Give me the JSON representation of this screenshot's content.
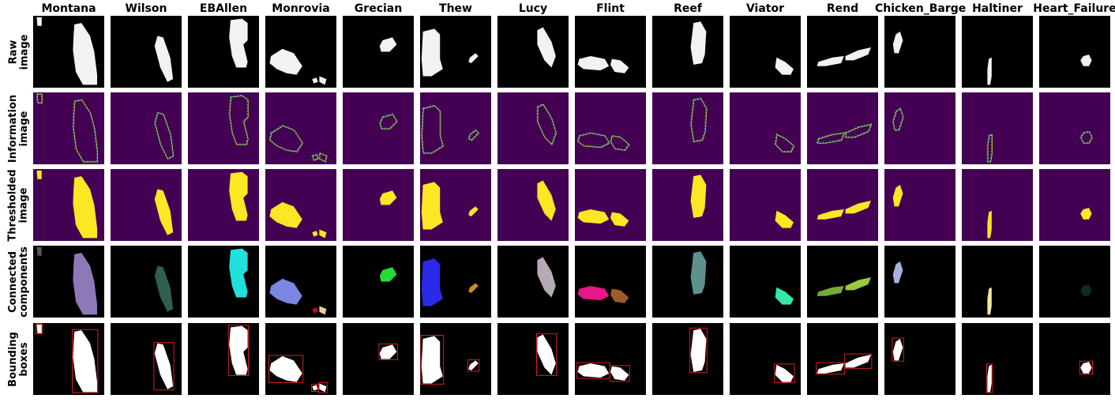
{
  "figure": {
    "columns": [
      "Montana",
      "Wilson",
      "EBAllen",
      "Monrovia",
      "Grecian",
      "Thew",
      "Lucy",
      "Flint",
      "Reef",
      "Viator",
      "Rend",
      "Chicken_Barge",
      "Haltiner",
      "Heart_Failure"
    ],
    "rows": [
      {
        "key": "raw",
        "line1": "Raw",
        "line2": "image",
        "background": "#000000"
      },
      {
        "key": "info",
        "line1": "Information",
        "line2": "image",
        "background": "#440154"
      },
      {
        "key": "thresh",
        "line1": "Thresholded",
        "line2": "image",
        "background": "#440154"
      },
      {
        "key": "cc",
        "line1": "Connected",
        "line2": "components",
        "background": "#000000"
      },
      {
        "key": "bbox",
        "line1": "Bounding",
        "line2": "boxes",
        "background": "#000000"
      }
    ],
    "colors": {
      "raw_fill": "#ffffff",
      "info_stroke": "#3b9a92",
      "info_highlight": "#b5de2b",
      "thresh_fill": "#fde725",
      "bbox_fill": "#ffffff",
      "bbox_stroke": "#d42020",
      "cc_colors": {
        "Montana": [
          "#8d79b8",
          "#555555"
        ],
        "Wilson": [
          "#2f5e52"
        ],
        "EBAllen": [
          "#22e0dc"
        ],
        "Monrovia": [
          "#7b86e0",
          "#b01030",
          "#e8d090"
        ],
        "Grecian": [
          "#22dd33"
        ],
        "Thew": [
          "#2a2ae8",
          "#c88a2a"
        ],
        "Lucy": [
          "#b5aab5"
        ],
        "Flint": [
          "#e8168a",
          "#a05a2a"
        ],
        "Reef": [
          "#5e9090"
        ],
        "Viator": [
          "#33e8a8"
        ],
        "Rend": [
          "#78a838",
          "#9ac840"
        ],
        "Chicken_Barge": [
          "#a8b0e0"
        ],
        "Haltiner": [
          "#f2e6a0"
        ],
        "Heart_Failure": [
          "#0e2a24"
        ]
      }
    }
  }
}
